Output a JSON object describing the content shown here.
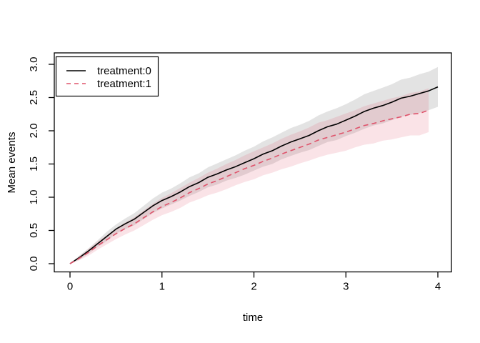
{
  "chart_data": {
    "type": "line",
    "title": "",
    "xlabel": "time",
    "ylabel": "Mean events",
    "xlim": [
      0,
      4
    ],
    "ylim": [
      0,
      3
    ],
    "xticks": [
      "0",
      "1",
      "2",
      "3",
      "4"
    ],
    "yticks": [
      "0.0",
      "0.5",
      "1.0",
      "1.5",
      "2.0",
      "2.5",
      "3.0"
    ],
    "grid": "off",
    "legend_position": "topleft",
    "series": [
      {
        "name": "treatment:0",
        "color": "#000000",
        "dash": "solid",
        "band_color": "#000000",
        "band_opacity": 0.11,
        "t": [
          0,
          0.1,
          0.2,
          0.3,
          0.4,
          0.5,
          0.6,
          0.7,
          0.8,
          0.9,
          1,
          1.1,
          1.2,
          1.3,
          1.4,
          1.5,
          1.6,
          1.7,
          1.8,
          1.9,
          2,
          2.1,
          2.2,
          2.3,
          2.4,
          2.5,
          2.6,
          2.7,
          2.8,
          2.9,
          3,
          3.1,
          3.2,
          3.3,
          3.4,
          3.5,
          3.6,
          3.7,
          3.8,
          3.9,
          4
        ],
        "mean": [
          0.0,
          0.09,
          0.19,
          0.3,
          0.41,
          0.52,
          0.6,
          0.67,
          0.77,
          0.87,
          0.95,
          1.01,
          1.08,
          1.16,
          1.22,
          1.3,
          1.35,
          1.41,
          1.46,
          1.52,
          1.58,
          1.65,
          1.7,
          1.77,
          1.83,
          1.88,
          1.93,
          2.0,
          2.06,
          2.1,
          2.16,
          2.22,
          2.29,
          2.34,
          2.38,
          2.43,
          2.49,
          2.52,
          2.56,
          2.6,
          2.66
        ],
        "lower": [
          0.0,
          0.06,
          0.15,
          0.25,
          0.34,
          0.45,
          0.52,
          0.58,
          0.67,
          0.76,
          0.83,
          0.89,
          0.95,
          1.02,
          1.08,
          1.15,
          1.19,
          1.25,
          1.29,
          1.34,
          1.4,
          1.46,
          1.5,
          1.57,
          1.62,
          1.67,
          1.71,
          1.77,
          1.83,
          1.86,
          1.92,
          1.97,
          2.03,
          2.08,
          2.11,
          2.16,
          2.21,
          2.24,
          2.27,
          2.31,
          2.36
        ],
        "upper": [
          0.0,
          0.12,
          0.23,
          0.35,
          0.48,
          0.59,
          0.68,
          0.76,
          0.87,
          0.98,
          1.07,
          1.13,
          1.21,
          1.3,
          1.36,
          1.45,
          1.51,
          1.57,
          1.63,
          1.7,
          1.76,
          1.84,
          1.9,
          1.97,
          2.04,
          2.09,
          2.15,
          2.23,
          2.29,
          2.34,
          2.4,
          2.47,
          2.55,
          2.6,
          2.65,
          2.7,
          2.77,
          2.8,
          2.85,
          2.89,
          2.96
        ]
      },
      {
        "name": "treatment:1",
        "color": "#DF536B",
        "dash": "dashed",
        "band_color": "#DF536B",
        "band_opacity": 0.16,
        "t": [
          0,
          0.1,
          0.2,
          0.3,
          0.4,
          0.5,
          0.6,
          0.7,
          0.8,
          0.9,
          1,
          1.1,
          1.2,
          1.3,
          1.4,
          1.5,
          1.6,
          1.7,
          1.8,
          1.9,
          2,
          2.1,
          2.2,
          2.3,
          2.4,
          2.5,
          2.6,
          2.7,
          2.8,
          2.9,
          3,
          3.1,
          3.2,
          3.3,
          3.4,
          3.5,
          3.6,
          3.7,
          3.8,
          3.9
        ],
        "mean": [
          0.0,
          0.08,
          0.17,
          0.27,
          0.36,
          0.45,
          0.53,
          0.6,
          0.69,
          0.78,
          0.86,
          0.92,
          0.99,
          1.07,
          1.13,
          1.2,
          1.25,
          1.31,
          1.37,
          1.43,
          1.48,
          1.54,
          1.59,
          1.65,
          1.7,
          1.75,
          1.8,
          1.86,
          1.9,
          1.94,
          1.98,
          2.03,
          2.08,
          2.11,
          2.15,
          2.18,
          2.21,
          2.25,
          2.26,
          2.31
        ],
        "lower": [
          0.0,
          0.05,
          0.12,
          0.21,
          0.29,
          0.37,
          0.44,
          0.5,
          0.58,
          0.66,
          0.73,
          0.78,
          0.84,
          0.92,
          0.97,
          1.03,
          1.07,
          1.12,
          1.18,
          1.23,
          1.27,
          1.33,
          1.37,
          1.42,
          1.46,
          1.51,
          1.55,
          1.6,
          1.64,
          1.67,
          1.7,
          1.75,
          1.79,
          1.81,
          1.85,
          1.87,
          1.9,
          1.93,
          1.93,
          1.98
        ],
        "upper": [
          0.0,
          0.11,
          0.22,
          0.33,
          0.43,
          0.53,
          0.62,
          0.7,
          0.8,
          0.9,
          0.99,
          1.06,
          1.14,
          1.22,
          1.29,
          1.37,
          1.43,
          1.5,
          1.56,
          1.63,
          1.69,
          1.75,
          1.81,
          1.88,
          1.94,
          1.99,
          2.05,
          2.12,
          2.16,
          2.21,
          2.26,
          2.31,
          2.37,
          2.41,
          2.45,
          2.49,
          2.52,
          2.57,
          2.59,
          2.64
        ]
      }
    ],
    "legend": {
      "entries": [
        {
          "label": "treatment:0"
        },
        {
          "label": "treatment:1"
        }
      ]
    }
  }
}
